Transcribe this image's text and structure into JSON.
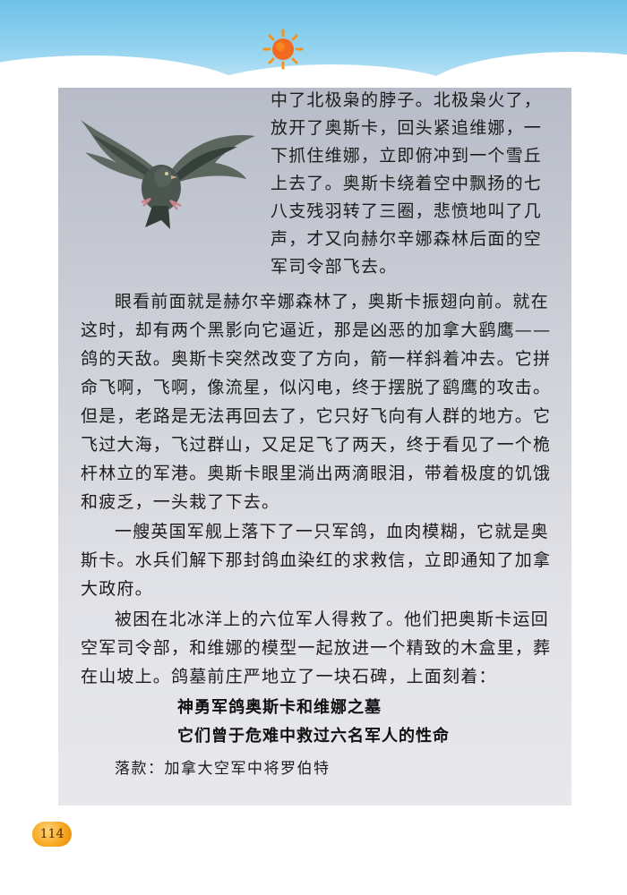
{
  "header": {
    "sun_icon": "sun-icon",
    "colors": {
      "sky": "#8fd1ef",
      "sun": "#f26a21",
      "sun_rays": "#f7941d"
    }
  },
  "illustration": {
    "icon": "pigeon-icon"
  },
  "story": {
    "wrapped_lines": [
      "中了北极枭的脖子。北极枭火了，",
      "放开了奥斯卡，回头紧追维娜，一",
      "下抓住维娜，立即俯冲到一个雪丘",
      "上去了。奥斯卡绕着空中飘扬的七",
      "八支残羽转了三圈，悲愤地叫了几",
      "声，才又向赫尔辛娜森林后面的空",
      "军司令部飞去。"
    ],
    "paragraph_1": [
      "眼看前面就是赫尔辛娜森林了，奥斯卡振翅向前。就在",
      "这时，却有两个黑影向它逼近，那是凶恶的加拿大鹞鹰——",
      "鸽的天敌。奥斯卡突然改变了方向，箭一样斜着冲去。它拼",
      "命飞啊，飞啊，像流星，似闪电，终于摆脱了鹞鹰的攻击。",
      "但是，老路是无法再回去了，它只好飞向有人群的地方。它",
      "飞过大海，飞过群山，又足足飞了两天，终于看见了一个桅",
      "杆林立的军港。奥斯卡眼里淌出两滴眼泪，带着极度的饥饿",
      "和疲乏，一头栽了下去。"
    ],
    "paragraph_2": [
      "一艘英国军舰上落下了一只军鸽，血肉模糊，它就是奥",
      "斯卡。水兵们解下那封鸽血染红的求救信，立即通知了加拿",
      "大政府。"
    ],
    "paragraph_3": [
      "被困在北冰洋上的六位军人得救了。他们把奥斯卡运回",
      "空军司令部，和维娜的模型一起放进一个精致的木盒里，葬",
      "在山坡上。鸽墓前庄严地立了一块石碑，上面刻着："
    ],
    "epitaph_1": "神勇军鸽奥斯卡和维娜之墓",
    "epitaph_2": "它们曾于危难中救过六名军人的性命",
    "signature": "落款：加拿大空军中将罗伯特"
  },
  "footer": {
    "page_number": "114",
    "badge_color": "#f7a81f"
  }
}
